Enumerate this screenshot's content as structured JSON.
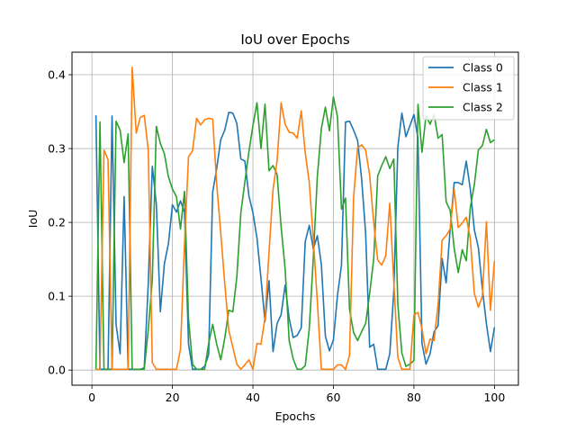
{
  "chart_data": {
    "type": "line",
    "title": "IoU over Epochs",
    "xlabel": "Epochs",
    "ylabel": "IoU",
    "xlim": [
      -4.95,
      105.95
    ],
    "ylim": [
      -0.0205,
      0.4305
    ],
    "xticks": [
      0,
      20,
      40,
      60,
      80,
      100
    ],
    "yticks": [
      0.0,
      0.1,
      0.2,
      0.3,
      0.4
    ],
    "ytick_labels": [
      "0.0",
      "0.1",
      "0.2",
      "0.3",
      "0.4"
    ],
    "grid": true,
    "legend_position": "top-right",
    "x": [
      1,
      2,
      3,
      4,
      5,
      6,
      7,
      8,
      9,
      10,
      11,
      12,
      13,
      14,
      15,
      16,
      17,
      18,
      19,
      20,
      21,
      22,
      23,
      24,
      25,
      26,
      27,
      28,
      29,
      30,
      31,
      32,
      33,
      34,
      35,
      36,
      37,
      38,
      39,
      40,
      41,
      42,
      43,
      44,
      45,
      46,
      47,
      48,
      49,
      50,
      51,
      52,
      53,
      54,
      55,
      56,
      57,
      58,
      59,
      60,
      61,
      62,
      63,
      64,
      65,
      66,
      67,
      68,
      69,
      70,
      71,
      72,
      73,
      74,
      75,
      76,
      77,
      78,
      79,
      80,
      81,
      82,
      83,
      84,
      85,
      86,
      87,
      88,
      89,
      90,
      91,
      92,
      93,
      94,
      95,
      96,
      97,
      98,
      99,
      100
    ],
    "series": [
      {
        "name": "Class 0",
        "color": "#1f77b4",
        "values": [
          0.345,
          0.001,
          0.001,
          0.001,
          0.344,
          0.062,
          0.022,
          0.235,
          0.001,
          0.001,
          0.001,
          0.001,
          0.003,
          0.117,
          0.276,
          0.225,
          0.079,
          0.144,
          0.171,
          0.224,
          0.214,
          0.229,
          0.214,
          0.035,
          0.001,
          0.001,
          0.001,
          0.005,
          0.021,
          0.241,
          0.273,
          0.312,
          0.325,
          0.349,
          0.348,
          0.334,
          0.286,
          0.283,
          0.236,
          0.213,
          0.179,
          0.124,
          0.066,
          0.121,
          0.025,
          0.063,
          0.075,
          0.115,
          0.07,
          0.044,
          0.047,
          0.057,
          0.174,
          0.196,
          0.164,
          0.182,
          0.143,
          0.046,
          0.026,
          0.041,
          0.101,
          0.142,
          0.336,
          0.337,
          0.325,
          0.311,
          0.259,
          0.185,
          0.031,
          0.035,
          0.001,
          0.001,
          0.001,
          0.022,
          0.107,
          0.302,
          0.348,
          0.316,
          0.331,
          0.346,
          0.314,
          0.036,
          0.008,
          0.022,
          0.052,
          0.06,
          0.151,
          0.118,
          0.191,
          0.254,
          0.254,
          0.251,
          0.283,
          0.245,
          0.19,
          0.166,
          0.11,
          0.063,
          0.025,
          0.058
        ]
      },
      {
        "name": "Class 2",
        "color": "#2ca02c",
        "values": [
          0.001,
          0.336,
          0.001,
          0.001,
          0.001,
          0.337,
          0.325,
          0.281,
          0.32,
          0.001,
          0.001,
          0.001,
          0.001,
          0.055,
          0.122,
          0.33,
          0.307,
          0.293,
          0.262,
          0.245,
          0.235,
          0.191,
          0.242,
          0.069,
          0.008,
          0.001,
          0.001,
          0.001,
          0.036,
          0.062,
          0.035,
          0.014,
          0.043,
          0.081,
          0.079,
          0.126,
          0.213,
          0.255,
          0.296,
          0.331,
          0.362,
          0.3,
          0.36,
          0.27,
          0.277,
          0.265,
          0.194,
          0.137,
          0.04,
          0.015,
          0.001,
          0.001,
          0.006,
          0.056,
          0.152,
          0.262,
          0.327,
          0.356,
          0.324,
          0.37,
          0.343,
          0.218,
          0.233,
          0.082,
          0.051,
          0.04,
          0.052,
          0.063,
          0.104,
          0.15,
          0.263,
          0.277,
          0.289,
          0.273,
          0.286,
          0.089,
          0.023,
          0.005,
          0.008,
          0.013,
          0.36,
          0.295,
          0.345,
          0.333,
          0.346,
          0.314,
          0.319,
          0.228,
          0.216,
          0.165,
          0.132,
          0.163,
          0.148,
          0.22,
          0.251,
          0.298,
          0.304,
          0.326,
          0.308,
          0.312
        ]
      },
      {
        "name": "Class 1",
        "color": "#ff7f0e",
        "values": [
          0.001,
          0.001,
          0.298,
          0.285,
          0.001,
          0.001,
          0.001,
          0.001,
          0.001,
          0.41,
          0.321,
          0.342,
          0.345,
          0.298,
          0.01,
          0.001,
          0.001,
          0.001,
          0.001,
          0.001,
          0.001,
          0.028,
          0.171,
          0.289,
          0.297,
          0.341,
          0.332,
          0.339,
          0.341,
          0.34,
          0.252,
          0.186,
          0.117,
          0.054,
          0.031,
          0.008,
          0.001,
          0.007,
          0.014,
          0.001,
          0.036,
          0.035,
          0.071,
          0.16,
          0.245,
          0.283,
          0.362,
          0.333,
          0.322,
          0.321,
          0.314,
          0.351,
          0.294,
          0.254,
          0.177,
          0.093,
          0.001,
          0.001,
          0.001,
          0.001,
          0.007,
          0.007,
          0.001,
          0.02,
          0.233,
          0.301,
          0.305,
          0.298,
          0.264,
          0.2,
          0.149,
          0.142,
          0.155,
          0.226,
          0.119,
          0.017,
          0.001,
          0.001,
          0.001,
          0.075,
          0.078,
          0.056,
          0.022,
          0.042,
          0.04,
          0.089,
          0.176,
          0.182,
          0.191,
          0.245,
          0.193,
          0.199,
          0.207,
          0.178,
          0.104,
          0.085,
          0.1,
          0.201,
          0.081,
          0.148
        ]
      }
    ],
    "legend_order": [
      "Class 0",
      "Class 1",
      "Class 2"
    ]
  }
}
